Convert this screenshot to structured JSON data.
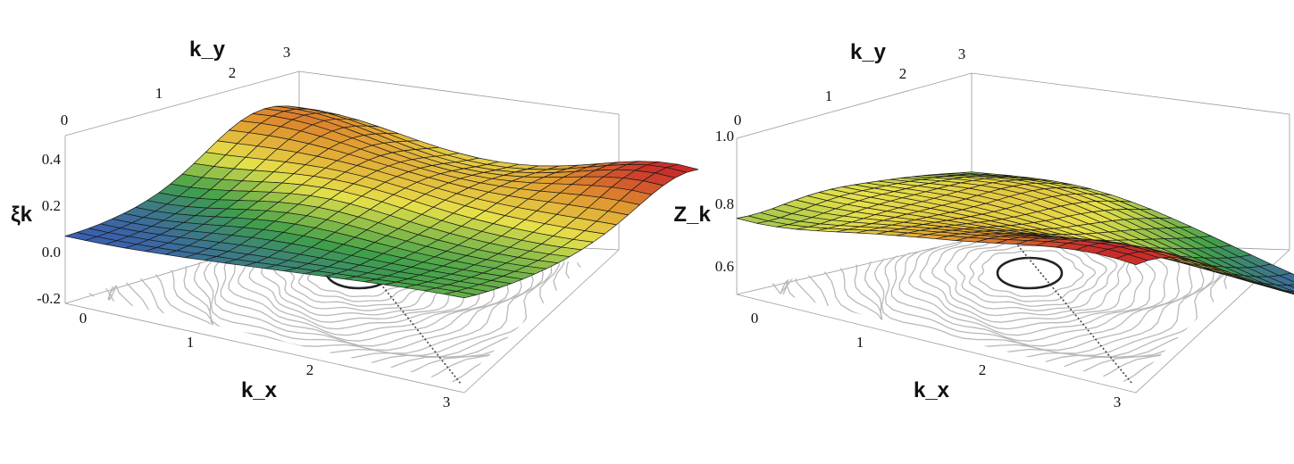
{
  "chart_data": [
    {
      "type": "surface3d",
      "xlabel": "k_x",
      "ylabel": "k_y",
      "zlabel": "ξk",
      "x_ticks": [
        "0",
        "1",
        "2",
        "3"
      ],
      "y_ticks": [
        "0",
        "1",
        "2",
        "3"
      ],
      "z_ticks": [
        "0.4",
        "0.2",
        "0.0",
        "-0.2"
      ],
      "xlim": [
        0,
        3.14
      ],
      "ylim": [
        0,
        3.14
      ],
      "zlim": [
        -0.2,
        0.5
      ],
      "grid": "mesh",
      "colormap": [
        "#3a5fb0",
        "#3fa04a",
        "#e6e04a",
        "#e0962f",
        "#c8292a"
      ],
      "z_at_corners": {
        "k0_0": 0.12,
        "kpi_0": 0.35,
        "k0_pi": 0.35,
        "kpi_pi": 0.45
      },
      "features": [
        "fermi-surface contour projected on floor",
        "diagonal dashed line"
      ]
    },
    {
      "type": "surface3d",
      "xlabel": "k_x",
      "ylabel": "k_y",
      "zlabel": "Z_k",
      "x_ticks": [
        "0",
        "1",
        "2",
        "3"
      ],
      "y_ticks": [
        "0",
        "1",
        "2",
        "3"
      ],
      "z_ticks": [
        "1.0",
        "0.8",
        "0.6"
      ],
      "xlim": [
        0,
        3.14
      ],
      "ylim": [
        0,
        3.14
      ],
      "zlim": [
        0.55,
        1.05
      ],
      "grid": "mesh",
      "colormap": [
        "#3a5fb0",
        "#3fa04a",
        "#e6e04a",
        "#e0962f",
        "#c8292a"
      ],
      "z_at_corners": {
        "k0_0": 0.95,
        "kpi_0": 0.9,
        "k0_pi": 0.68,
        "kpi_pi": 0.8
      },
      "features": [
        "fermi-surface contour projected on floor",
        "diagonal dashed line"
      ]
    }
  ],
  "colors": {
    "box": "#9a9a9a",
    "contour": "#b9b9b9",
    "mesh": "#1a1a1a",
    "text": "#111111"
  }
}
